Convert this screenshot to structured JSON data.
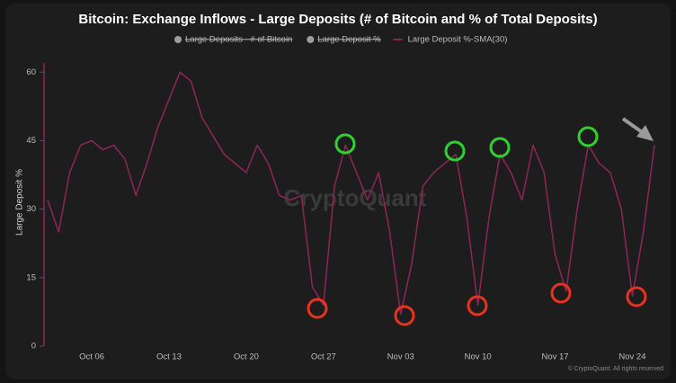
{
  "chart_data": {
    "type": "line",
    "title": "Bitcoin: Exchange Inflows - Large Deposits (# of Bitcoin and % of Total Deposits)",
    "ylabel": "Large Deposit %",
    "watermark": "CryptoQuant",
    "footer": "© CryptoQuant. All rights reserved",
    "categories": [
      null,
      null,
      null,
      null,
      "Oct 06",
      null,
      null,
      null,
      null,
      null,
      null,
      "Oct 13",
      null,
      null,
      null,
      null,
      null,
      null,
      "Oct 20",
      null,
      null,
      null,
      null,
      null,
      null,
      "Oct 27",
      null,
      null,
      null,
      null,
      null,
      null,
      "Nov 03",
      null,
      null,
      null,
      null,
      null,
      null,
      "Nov 10",
      null,
      null,
      null,
      null,
      null,
      null,
      "Nov 17",
      null,
      null,
      null,
      null,
      null,
      null,
      "Nov 24",
      null,
      null
    ],
    "series": [
      {
        "name": "Large Deposits - # of Bitcoin",
        "color": "#9e9e9e",
        "hidden": true
      },
      {
        "name": "Large Deposit %",
        "color": "#9e9e9e",
        "hidden": true
      },
      {
        "name": "Large Deposit %-SMA(30)",
        "color": "#8a2456",
        "values": [
          32,
          25,
          38,
          44,
          45,
          43,
          44,
          41,
          33,
          40,
          48,
          54,
          60,
          58,
          50,
          46,
          42,
          40,
          38,
          44,
          40,
          33,
          32,
          33,
          13,
          9,
          35,
          44,
          38,
          32,
          38,
          25,
          7,
          18,
          35,
          38,
          40,
          42,
          28,
          9,
          28,
          42,
          38,
          32,
          44,
          38,
          20,
          12,
          30,
          44,
          40,
          38,
          30,
          11,
          25,
          44
        ]
      }
    ],
    "ylim": [
      0,
      63
    ],
    "yticks": [
      0,
      15,
      30,
      45,
      60
    ]
  }
}
